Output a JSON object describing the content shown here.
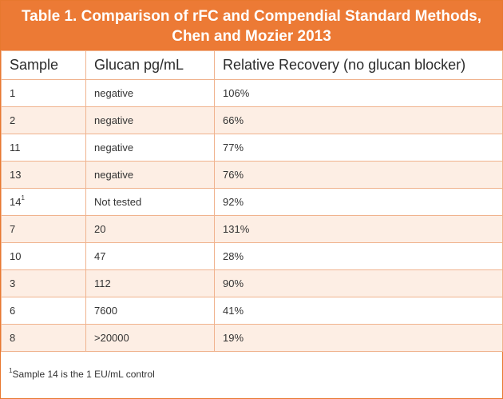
{
  "table": {
    "title_line1": "Table 1. Comparison of rFC and Compendial Standard Methods,",
    "title_line2": "Chen and Mozier 2013",
    "headers": [
      "Sample",
      "Glucan pg/mL",
      "Relative Recovery (no glucan blocker)"
    ],
    "rows": [
      {
        "sample": "1",
        "sample_sup": "",
        "glucan": "negative",
        "recovery": "106%"
      },
      {
        "sample": "2",
        "sample_sup": "",
        "glucan": "negative",
        "recovery": "66%"
      },
      {
        "sample": "11",
        "sample_sup": "",
        "glucan": "negative",
        "recovery": "77%"
      },
      {
        "sample": "13",
        "sample_sup": "",
        "glucan": "negative",
        "recovery": "76%"
      },
      {
        "sample": "14",
        "sample_sup": "1",
        "glucan": "Not tested",
        "recovery": "92%"
      },
      {
        "sample": "7",
        "sample_sup": "",
        "glucan": "20",
        "recovery": "131%"
      },
      {
        "sample": "10",
        "sample_sup": "",
        "glucan": "47",
        "recovery": "28%"
      },
      {
        "sample": "3",
        "sample_sup": "",
        "glucan": "112",
        "recovery": "90%"
      },
      {
        "sample": "6",
        "sample_sup": "",
        "glucan": "7600",
        "recovery": "41%"
      },
      {
        "sample": "8",
        "sample_sup": "",
        "glucan": ">20000",
        "recovery": "19%"
      }
    ],
    "footnote_marker": "1",
    "footnote_text": "Sample 14 is the 1 EU/mL control"
  },
  "colors": {
    "title_bg": "#ec7a35",
    "stripe": "#fdeee4",
    "border": "#f0b38e"
  }
}
